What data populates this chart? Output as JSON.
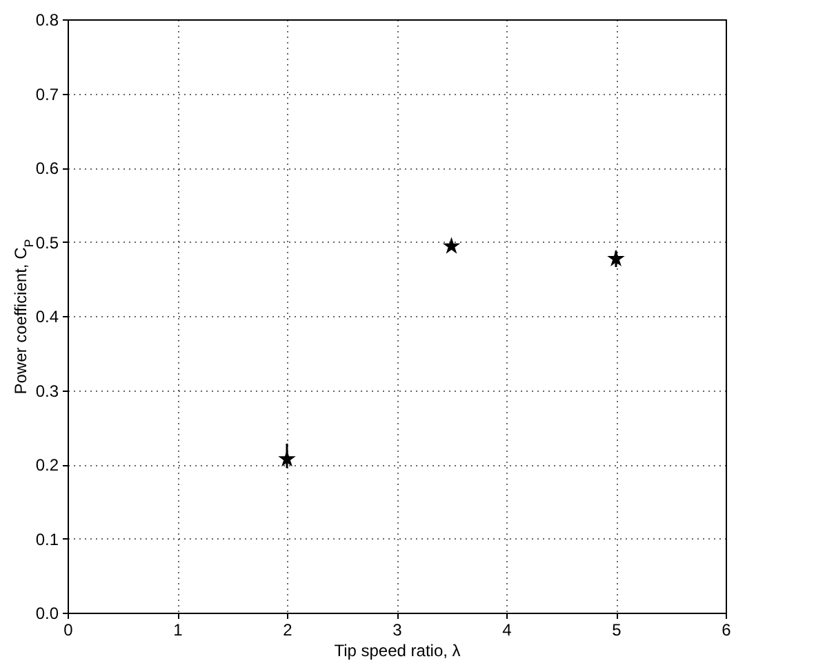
{
  "chart_data": {
    "type": "scatter",
    "xlabel": "Tip speed ratio, λ",
    "ylabel": "Power coefficient, C$_{P}$",
    "x": [
      2,
      3.5,
      5
    ],
    "series": [
      {
        "color": "#000000",
        "values": [
          0.207,
          0.494,
          0.477
        ],
        "errors": [
          [
            0.195,
            0.228
          ],
          null,
          [
            0.466,
            0.488
          ]
        ]
      }
    ],
    "xlim": [
      0,
      6
    ],
    "xticks": [
      0,
      1,
      2,
      3,
      4,
      5,
      6
    ],
    "ylim": [
      0,
      0.8
    ],
    "yticks": [
      {
        "value": 0,
        "label": "0.0"
      },
      0.1,
      0.2,
      0.3,
      0.4,
      0.5,
      0.6,
      0.7,
      0.8
    ],
    "grid": true,
    "marker": "star"
  }
}
